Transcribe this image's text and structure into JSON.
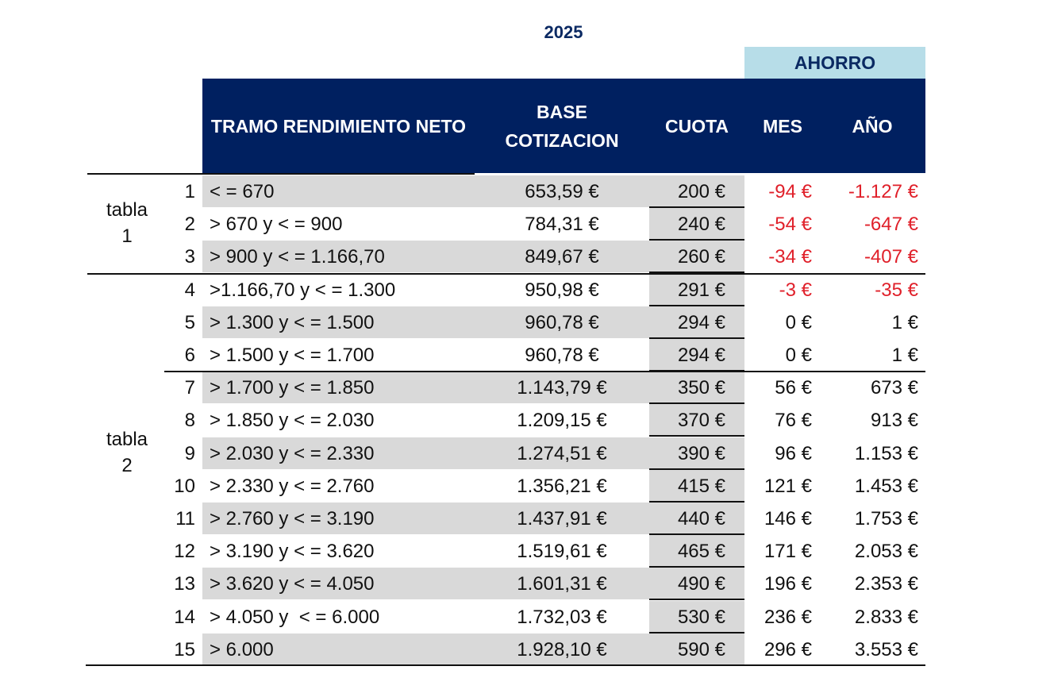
{
  "title": "2025",
  "header": {
    "ahorro": "AHORRO",
    "tramo": "TRAMO RENDIMIENTO NETO",
    "base": "BASE COTIZACION",
    "cuota": "CUOTA",
    "mes": "MES",
    "anio": "AÑO"
  },
  "groups": [
    {
      "label_line1": "tabla",
      "label_line2": "1"
    },
    {
      "label_line1": "tabla",
      "label_line2": "2"
    }
  ],
  "colors": {
    "header_bg": "#002060",
    "ahorro_bg": "#b7dde8",
    "negative": "#e0202a",
    "row_shade": "#d9d9d9"
  },
  "rows": [
    {
      "n": "1",
      "tramo": "< = 670",
      "base": "653,59 €",
      "cuota": "200 €",
      "mes": "-94 €",
      "anio": "-1.127 €",
      "negative": true
    },
    {
      "n": "2",
      "tramo": "> 670 y < = 900",
      "base": "784,31 €",
      "cuota": "240 €",
      "mes": "-54 €",
      "anio": "-647 €",
      "negative": true
    },
    {
      "n": "3",
      "tramo": "> 900 y < = 1.166,70",
      "base": "849,67 €",
      "cuota": "260 €",
      "mes": "-34 €",
      "anio": "-407 €",
      "negative": true
    },
    {
      "n": "4",
      "tramo": ">1.166,70 y < = 1.300",
      "base": "950,98 €",
      "cuota": "291 €",
      "mes": "-3 €",
      "anio": "-35 €",
      "negative": true
    },
    {
      "n": "5",
      "tramo": "> 1.300 y < = 1.500",
      "base": "960,78 €",
      "cuota": "294 €",
      "mes": "0 €",
      "anio": "1 €",
      "negative": false
    },
    {
      "n": "6",
      "tramo": "> 1.500 y < = 1.700",
      "base": "960,78 €",
      "cuota": "294 €",
      "mes": "0 €",
      "anio": "1 €",
      "negative": false
    },
    {
      "n": "7",
      "tramo": "> 1.700 y < = 1.850",
      "base": "1.143,79 €",
      "cuota": "350 €",
      "mes": "56 €",
      "anio": "673 €",
      "negative": false
    },
    {
      "n": "8",
      "tramo": "> 1.850 y < = 2.030",
      "base": "1.209,15 €",
      "cuota": "370 €",
      "mes": "76 €",
      "anio": "913 €",
      "negative": false
    },
    {
      "n": "9",
      "tramo": "> 2.030 y < = 2.330",
      "base": "1.274,51 €",
      "cuota": "390 €",
      "mes": "96 €",
      "anio": "1.153 €",
      "negative": false
    },
    {
      "n": "10",
      "tramo": "> 2.330 y < = 2.760",
      "base": "1.356,21 €",
      "cuota": "415 €",
      "mes": "121 €",
      "anio": "1.453 €",
      "negative": false
    },
    {
      "n": "11",
      "tramo": "> 2.760 y < = 3.190",
      "base": "1.437,91 €",
      "cuota": "440 €",
      "mes": "146 €",
      "anio": "1.753 €",
      "negative": false
    },
    {
      "n": "12",
      "tramo": "> 3.190 y < = 3.620",
      "base": "1.519,61 €",
      "cuota": "465 €",
      "mes": "171 €",
      "anio": "2.053 €",
      "negative": false
    },
    {
      "n": "13",
      "tramo": "> 3.620 y < = 4.050",
      "base": "1.601,31 €",
      "cuota": "490 €",
      "mes": "196 €",
      "anio": "2.353 €",
      "negative": false
    },
    {
      "n": "14",
      "tramo": "> 4.050 y  < = 6.000",
      "base": "1.732,03 €",
      "cuota": "530 €",
      "mes": "236 €",
      "anio": "2.833 €",
      "negative": false
    },
    {
      "n": "15",
      "tramo": "> 6.000",
      "base": "1.928,10 €",
      "cuota": "590 €",
      "mes": "296 €",
      "anio": "3.553 €",
      "negative": false
    }
  ]
}
